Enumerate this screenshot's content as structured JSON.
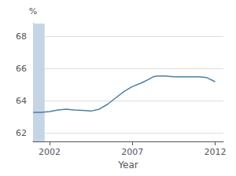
{
  "chart_data": {
    "type": "line",
    "xlabel": "Year",
    "ylabel": "%",
    "x": [
      2001.0,
      2001.5,
      2002.0,
      2002.5,
      2003.0,
      2003.5,
      2004.0,
      2004.5,
      2005.0,
      2005.5,
      2006.0,
      2006.5,
      2007.0,
      2007.5,
      2008.0,
      2008.25,
      2008.5,
      2009.0,
      2009.5,
      2010.0,
      2010.5,
      2011.0,
      2011.5,
      2012.0
    ],
    "values": [
      63.3,
      63.3,
      63.35,
      63.45,
      63.5,
      63.45,
      63.42,
      63.38,
      63.5,
      63.8,
      64.2,
      64.6,
      64.9,
      65.1,
      65.35,
      65.5,
      65.55,
      65.55,
      65.5,
      65.5,
      65.5,
      65.5,
      65.45,
      65.2
    ],
    "color": "#4a7fa8",
    "shaded_spans": [
      {
        "x": [
          2001.0,
          2001.7
        ],
        "color": "#c5d5e5"
      }
    ],
    "xlim": [
      2001.0,
      2012.5
    ],
    "xticks": [
      2002,
      2007,
      2012
    ],
    "ylim": [
      61.5,
      68.8
    ],
    "yticks": [
      62,
      64,
      66,
      68
    ],
    "grid": true
  }
}
